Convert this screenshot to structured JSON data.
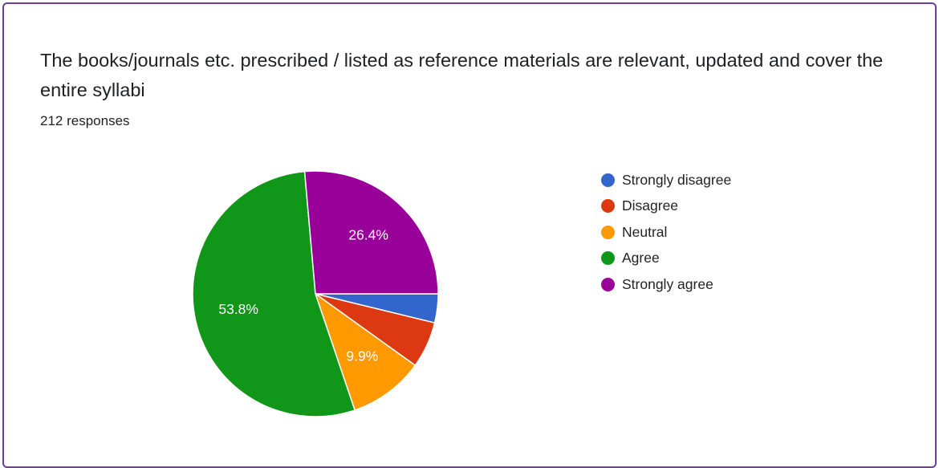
{
  "card": {
    "title": "The books/journals etc. prescribed / listed as reference materials are relevant, updated and cover the entire syllabi",
    "responses": "212 responses"
  },
  "chart_data": {
    "type": "pie",
    "title": "The books/journals etc. prescribed / listed as reference materials are relevant, updated and cover the entire syllabi",
    "total_responses": 212,
    "legend_position": "right",
    "categories": [
      "Strongly disagree",
      "Disagree",
      "Neutral",
      "Agree",
      "Strongly agree"
    ],
    "values": [
      3.8,
      6.1,
      9.9,
      53.8,
      26.4
    ],
    "labels": [
      "",
      "",
      "9.9%",
      "53.8%",
      "26.4%"
    ],
    "colors": [
      "#3366cc",
      "#dc3912",
      "#ff9900",
      "#109618",
      "#990099"
    ]
  }
}
